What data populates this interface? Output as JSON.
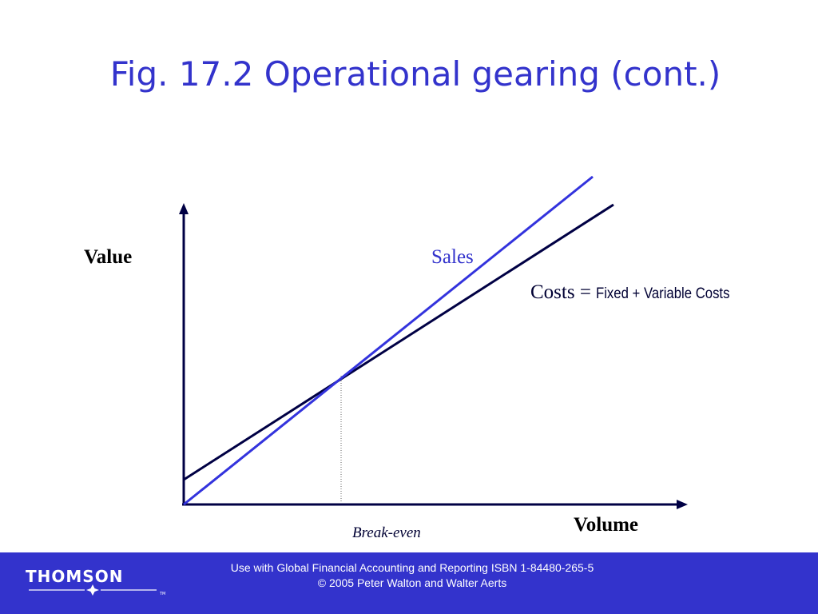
{
  "slide": {
    "title": "Fig. 17.2 Operational gearing (cont.)"
  },
  "diagram": {
    "y_axis_label": "Value",
    "x_axis_label": "Volume",
    "sales_label": "Sales",
    "costs_label": "Costs = ",
    "costs_detail": "Fixed + Variable Costs",
    "breakeven_label": "Break-even",
    "colors": {
      "sales_line": "#3333dd",
      "costs_line": "#000044",
      "axes": "#000044"
    }
  },
  "footer": {
    "logo_text": "THOMSON",
    "trademark": "TM",
    "line1": "Use with Global Financial Accounting and Reporting ISBN 1-84480-265-5",
    "line2": "© 2005 Peter Walton and Walter Aerts",
    "background": "#3333cc"
  }
}
